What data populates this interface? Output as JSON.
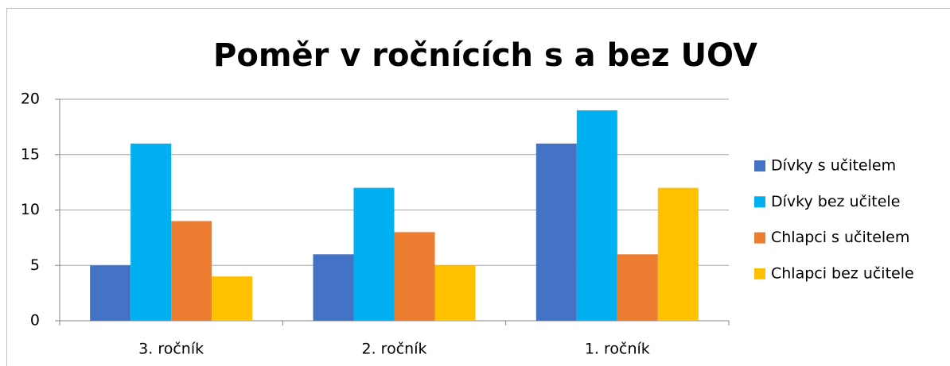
{
  "chart_data": {
    "type": "bar",
    "title": "Poměr v ročnících s a bez UOV",
    "categories": [
      "3. ročník",
      "2. ročník",
      "1. ročník"
    ],
    "series": [
      {
        "name": "Dívky s učitelem",
        "color": "#4472c4",
        "values": [
          5,
          6,
          16
        ]
      },
      {
        "name": "Dívky bez učitele",
        "color": "#00b0f0",
        "values": [
          16,
          12,
          19
        ]
      },
      {
        "name": "Chlapci s učitelem",
        "color": "#ed7d31",
        "values": [
          9,
          8,
          6
        ]
      },
      {
        "name": "Chlapci bez učitele",
        "color": "#ffc000",
        "values": [
          4,
          5,
          12
        ]
      }
    ],
    "ylim": [
      0,
      20
    ],
    "yticks": [
      0,
      5,
      10,
      15,
      20
    ],
    "grid": true,
    "legend": "right"
  }
}
